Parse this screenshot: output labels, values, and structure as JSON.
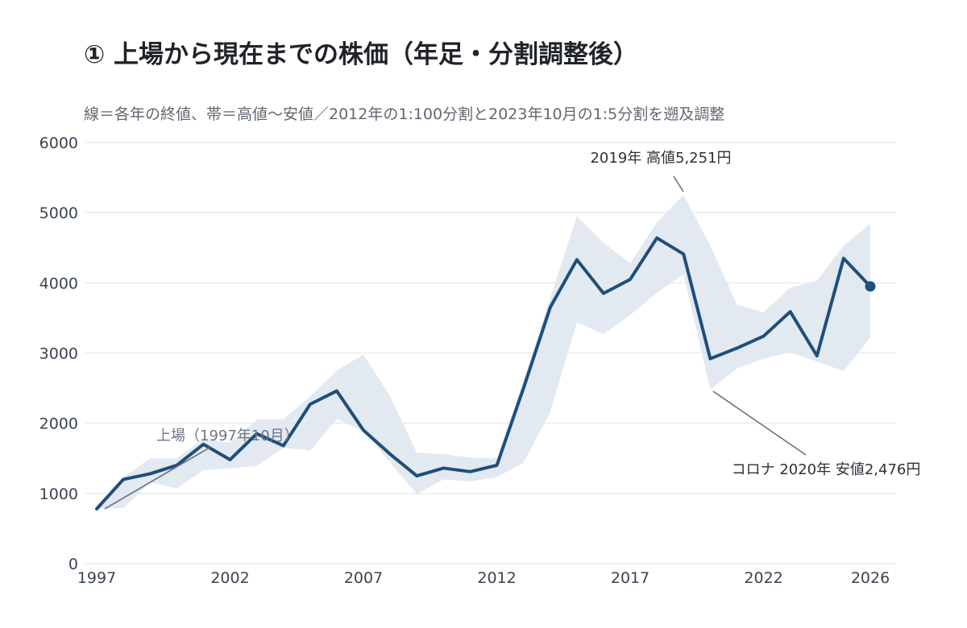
{
  "title": "① 上場から現在までの株価（年足・分割調整後）",
  "subtitle": "線＝各年の終値、帯＝高値〜安値／2012年の1:100分割と2023年10月の1:5分割を遡及調整",
  "chart_data": {
    "type": "line",
    "title": "① 上場から現在までの株価（年足・分割調整後）",
    "subtitle": "線＝各年の終値、帯＝高値〜安値／2012年の1:100分割と2023年10月の1:5分割を遡及調整",
    "xlim": [
      1997,
      2026
    ],
    "ylim": [
      0,
      6000
    ],
    "x_ticks": [
      1997,
      2002,
      2007,
      2012,
      2017,
      2022,
      2026
    ],
    "y_ticks": [
      0,
      1000,
      2000,
      3000,
      4000,
      5000,
      6000
    ],
    "grid": true,
    "colors": {
      "line": "#1f4e79",
      "band": "#dfe7f0",
      "grid": "#e9ecef",
      "leader": "#6b7280"
    },
    "years": [
      1997,
      1998,
      1999,
      2000,
      2001,
      2002,
      2003,
      2004,
      2005,
      2006,
      2007,
      2008,
      2009,
      2010,
      2011,
      2012,
      2013,
      2014,
      2015,
      2016,
      2017,
      2018,
      2019,
      2020,
      2021,
      2022,
      2023,
      2024,
      2025,
      2026
    ],
    "close": [
      780,
      1200,
      1280,
      1400,
      1700,
      1480,
      1850,
      1680,
      2270,
      2460,
      1900,
      1560,
      1250,
      1360,
      1310,
      1400,
      2500,
      3650,
      4330,
      3850,
      4050,
      4640,
      4410,
      2920,
      3070,
      3240,
      3590,
      2960,
      4350,
      3950
    ],
    "high": [
      780,
      1230,
      1500,
      1500,
      1780,
      1720,
      2050,
      2060,
      2380,
      2750,
      2980,
      2380,
      1580,
      1560,
      1510,
      1500,
      2600,
      3780,
      4950,
      4570,
      4280,
      4860,
      5251,
      4530,
      3690,
      3580,
      3930,
      4030,
      4530,
      4840
    ],
    "low": [
      780,
      790,
      1160,
      1070,
      1330,
      1360,
      1390,
      1650,
      1610,
      2060,
      1890,
      1440,
      990,
      1200,
      1170,
      1230,
      1440,
      2160,
      3440,
      3270,
      3540,
      3860,
      4120,
      2476,
      2780,
      2920,
      3010,
      2880,
      2740,
      3220
    ],
    "last_point": {
      "year": 2026,
      "value": 3950
    },
    "annotations": [
      {
        "text": "上場（1997年10月）",
        "x": 1997,
        "y": 780,
        "kind": "ipo"
      },
      {
        "text": "2019年 高値5,251円",
        "x": 2019,
        "y": 5251,
        "kind": "high"
      },
      {
        "text": "コロナ 2020年 安値2,476円",
        "x": 2020,
        "y": 2476,
        "kind": "low"
      }
    ]
  }
}
